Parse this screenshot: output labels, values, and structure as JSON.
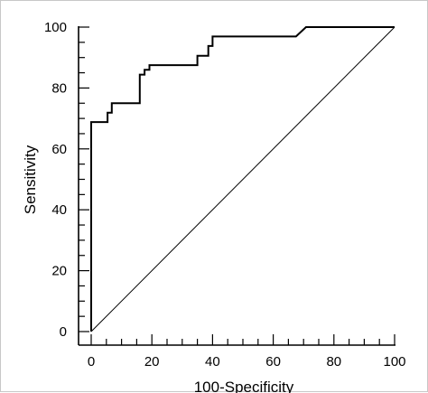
{
  "chart_data": {
    "type": "line",
    "title": "",
    "xlabel": "100-Specificity",
    "ylabel": "Sensitivity",
    "xlim": [
      0,
      100
    ],
    "ylim": [
      0,
      100
    ],
    "x_ticks": [
      0,
      20,
      40,
      60,
      80,
      100
    ],
    "y_ticks": [
      0,
      20,
      40,
      60,
      80,
      100
    ],
    "x_tick_labels": [
      "0",
      "20",
      "40",
      "60",
      "80",
      "100"
    ],
    "y_tick_labels": [
      "0",
      "20",
      "40",
      "60",
      "80",
      "100"
    ],
    "grid": false,
    "legend": "none",
    "series": [
      {
        "style": "step",
        "color": "#000000",
        "x": [
          0,
          0,
          5.4,
          5.4,
          6.8,
          6.8,
          8.1,
          8.1,
          16,
          16,
          17.6,
          17.6,
          19.2,
          19.2,
          35,
          35,
          38.6,
          38.6,
          40,
          40,
          67.5,
          67.5,
          70.8,
          100
        ],
        "y": [
          0,
          68.8,
          68.8,
          71.9,
          71.9,
          75,
          75,
          75,
          75,
          84.4,
          84.4,
          86,
          86,
          87.5,
          87.5,
          90.6,
          90.6,
          93.8,
          93.8,
          96.9,
          96.9,
          96.9,
          100,
          100
        ]
      },
      {
        "style": "reference",
        "color": "#000000",
        "x": [
          0,
          100
        ],
        "y": [
          0,
          100
        ]
      }
    ]
  }
}
